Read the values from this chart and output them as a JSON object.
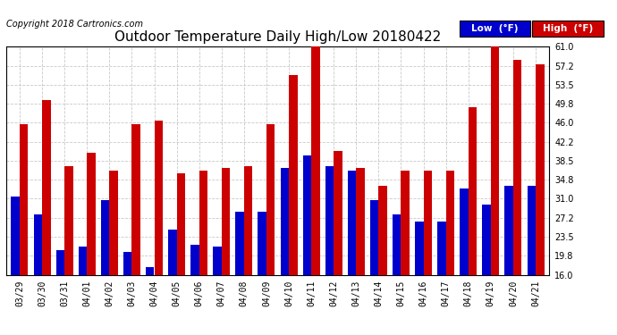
{
  "title": "Outdoor Temperature Daily High/Low 20180422",
  "copyright": "Copyright 2018 Cartronics.com",
  "dates": [
    "03/29",
    "03/30",
    "03/31",
    "04/01",
    "04/02",
    "04/03",
    "04/04",
    "04/05",
    "04/06",
    "04/07",
    "04/08",
    "04/09",
    "04/10",
    "04/11",
    "04/12",
    "04/13",
    "04/14",
    "04/15",
    "04/16",
    "04/17",
    "04/18",
    "04/19",
    "04/20",
    "04/21"
  ],
  "low": [
    31.5,
    28.0,
    20.8,
    21.5,
    30.8,
    20.5,
    17.5,
    25.0,
    22.0,
    21.5,
    28.5,
    28.5,
    37.0,
    39.5,
    37.5,
    36.5,
    30.8,
    28.0,
    26.5,
    26.5,
    33.0,
    29.8,
    33.5,
    33.5
  ],
  "high": [
    45.8,
    50.5,
    37.5,
    40.0,
    36.5,
    45.8,
    46.5,
    36.0,
    36.5,
    37.0,
    37.5,
    45.8,
    55.5,
    62.5,
    40.5,
    37.0,
    33.5,
    36.5,
    36.5,
    36.5,
    49.0,
    61.0,
    58.5,
    57.5
  ],
  "ylim": [
    16.0,
    61.0
  ],
  "yticks": [
    16.0,
    19.8,
    23.5,
    27.2,
    31.0,
    34.8,
    38.5,
    42.2,
    46.0,
    49.8,
    53.5,
    57.2,
    61.0
  ],
  "low_color": "#0000cc",
  "high_color": "#cc0000",
  "bg_color": "#ffffff",
  "grid_color": "#bbbbbb",
  "title_fontsize": 11,
  "copyright_fontsize": 7,
  "tick_fontsize": 7,
  "legend_low_label": "Low  (°F)",
  "legend_high_label": "High  (°F)"
}
